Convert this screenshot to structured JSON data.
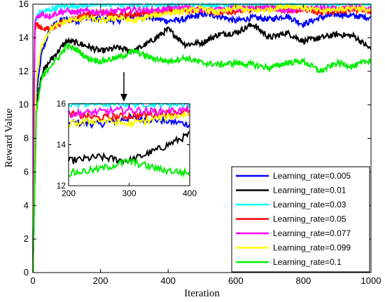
{
  "chart_data": {
    "type": "line",
    "title": "",
    "xlabel": "Iteration",
    "ylabel": "Reward Value",
    "xlim": [
      0,
      1000
    ],
    "ylim": [
      0,
      16
    ],
    "xticks": [
      0,
      200,
      400,
      600,
      800,
      1000
    ],
    "yticks": [
      0,
      2,
      4,
      6,
      8,
      10,
      12,
      14,
      16
    ],
    "grid": false,
    "legend_position": "bottom-right",
    "series": [
      {
        "name": "Learning_rate=0.005",
        "color": "#0000ff",
        "x": [
          0,
          10,
          25,
          50,
          75,
          100,
          130,
          160,
          200,
          250,
          300,
          350,
          400,
          450,
          500,
          550,
          600,
          650,
          700,
          750,
          800,
          850,
          900,
          950,
          1000
        ],
        "y": [
          0,
          10.5,
          13.0,
          14.5,
          15.0,
          15.1,
          15.0,
          15.2,
          15.1,
          15.0,
          15.3,
          15.2,
          15.0,
          15.1,
          15.4,
          15.3,
          15.0,
          15.2,
          15.1,
          15.3,
          14.8,
          15.2,
          15.4,
          15.3,
          15.2
        ]
      },
      {
        "name": "Learning_rate=0.01",
        "color": "#000000",
        "x": [
          0,
          10,
          25,
          50,
          75,
          100,
          130,
          160,
          200,
          250,
          300,
          350,
          400,
          450,
          500,
          550,
          600,
          650,
          700,
          750,
          800,
          850,
          900,
          950,
          1000
        ],
        "y": [
          0,
          10.0,
          11.8,
          12.6,
          13.2,
          13.8,
          13.7,
          13.5,
          13.2,
          13.4,
          13.2,
          13.8,
          14.5,
          13.6,
          13.7,
          14.2,
          14.3,
          14.8,
          14.0,
          14.3,
          13.8,
          14.0,
          14.2,
          14.1,
          13.3
        ]
      },
      {
        "name": "Learning_rate=0.03",
        "color": "#00ffff",
        "x": [
          0,
          5,
          10,
          20,
          40,
          70,
          100,
          150,
          200,
          300,
          400,
          500,
          600,
          700,
          800,
          900,
          1000
        ],
        "y": [
          0,
          14.5,
          15.2,
          15.5,
          15.6,
          15.8,
          15.9,
          15.95,
          16,
          16,
          16,
          16,
          16,
          16,
          16,
          16,
          16
        ]
      },
      {
        "name": "Learning_rate=0.05",
        "color": "#ff0000",
        "x": [
          0,
          5,
          10,
          25,
          50,
          75,
          100,
          130,
          160,
          200,
          250,
          300,
          350,
          400,
          450,
          500,
          550,
          600,
          650,
          700,
          750,
          800,
          850,
          900,
          950,
          1000
        ],
        "y": [
          0,
          14.3,
          14.8,
          14.6,
          14.5,
          14.8,
          15.0,
          15.2,
          15.4,
          15.5,
          15.3,
          15.4,
          15.5,
          15.6,
          15.6,
          15.7,
          15.5,
          15.6,
          15.7,
          15.8,
          15.6,
          15.7,
          15.5,
          15.6,
          15.7,
          15.5
        ]
      },
      {
        "name": "Learning_rate=0.077",
        "color": "#ff00ff",
        "x": [
          0,
          5,
          10,
          25,
          50,
          75,
          100,
          130,
          160,
          200,
          250,
          300,
          350,
          400,
          450,
          500,
          550,
          600,
          650,
          700,
          750,
          800,
          850,
          900,
          950,
          1000
        ],
        "y": [
          0,
          14.8,
          15.2,
          15.4,
          15.3,
          15.5,
          15.6,
          15.5,
          15.6,
          15.5,
          15.6,
          15.7,
          15.6,
          15.7,
          15.8,
          15.6,
          15.7,
          15.8,
          15.7,
          15.8,
          15.6,
          15.7,
          15.8,
          15.7,
          15.8,
          15.7
        ]
      },
      {
        "name": "Learning_rate=0.099",
        "color": "#ffff00",
        "x": [
          0,
          10,
          25,
          50,
          75,
          100,
          130,
          160,
          200,
          250,
          300,
          350,
          400,
          450,
          500,
          550,
          600,
          650,
          700,
          750,
          800,
          850,
          900,
          950,
          1000
        ],
        "y": [
          0,
          11.5,
          13.5,
          14.5,
          14.8,
          15.0,
          15.1,
          15.2,
          15.0,
          15.2,
          15.0,
          15.3,
          15.5,
          15.6,
          15.7,
          15.5,
          15.8,
          15.6,
          15.7,
          15.9,
          15.8,
          15.6,
          15.7,
          15.8,
          15.6
        ]
      },
      {
        "name": "Learning_rate=0.1",
        "color": "#00ee00",
        "x": [
          0,
          10,
          25,
          50,
          75,
          100,
          130,
          160,
          200,
          250,
          300,
          350,
          400,
          450,
          500,
          550,
          600,
          650,
          700,
          750,
          800,
          850,
          900,
          950,
          1000
        ],
        "y": [
          0,
          9.5,
          11.5,
          12.3,
          12.8,
          13.5,
          13.3,
          12.8,
          12.6,
          12.8,
          13.2,
          12.8,
          12.6,
          12.8,
          12.5,
          12.4,
          12.5,
          12.4,
          12.2,
          12.5,
          12.6,
          12.0,
          12.5,
          12.3,
          12.7
        ]
      }
    ],
    "inset": {
      "xlim": [
        200,
        400
      ],
      "ylim": [
        12,
        16
      ],
      "xticks": [
        200,
        300,
        400
      ],
      "yticks": [
        12,
        14,
        16
      ],
      "arrow_to_x": 280
    }
  }
}
